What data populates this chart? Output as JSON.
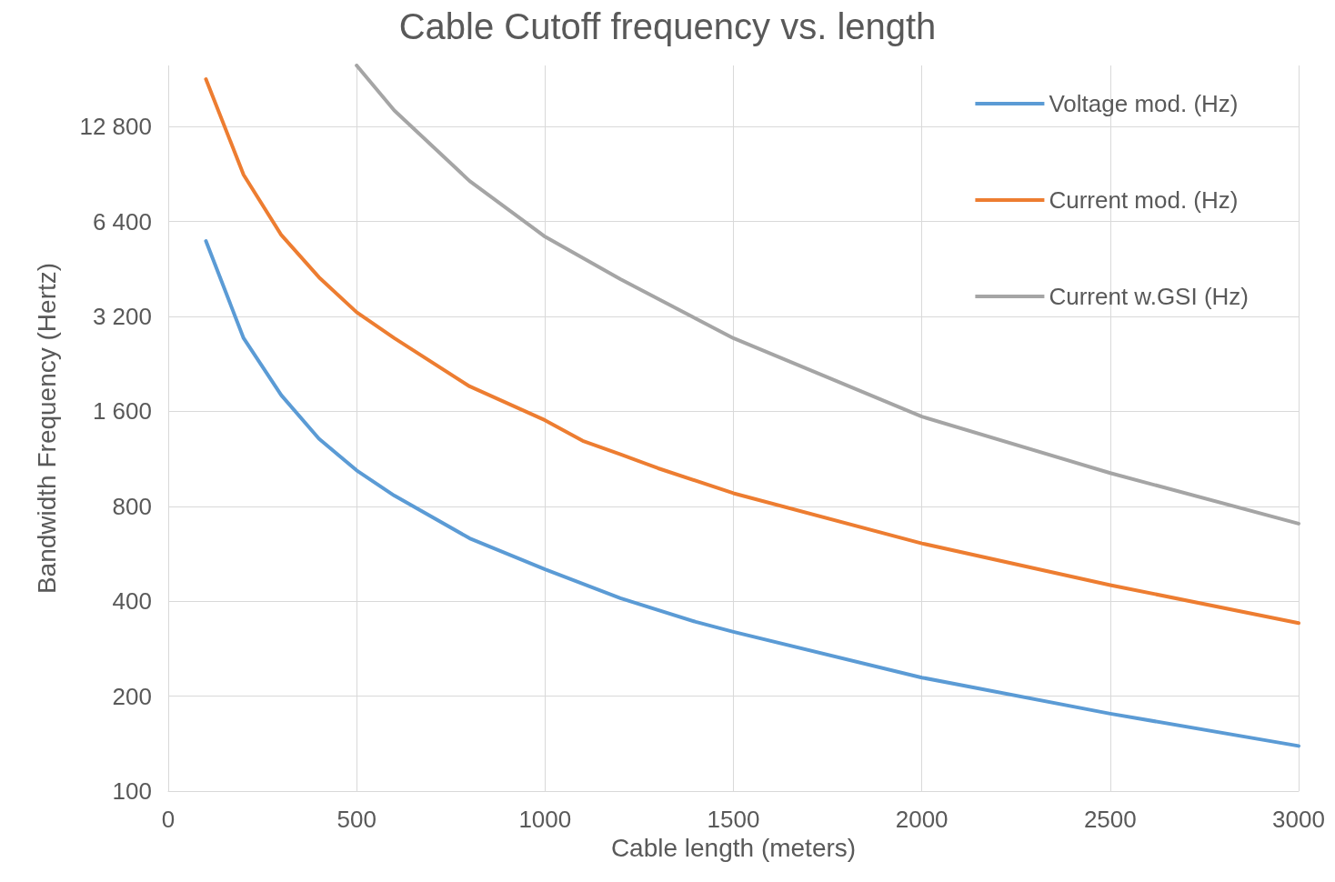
{
  "chart_data": {
    "type": "line",
    "title": "Cable Cutoff frequency vs. length",
    "xlabel": "Cable length (meters)",
    "ylabel": "Bandwidth Frequency (Hertz)",
    "log": "y",
    "grid": true,
    "legend": "top right",
    "marker": "none",
    "line_style": "solid",
    "xlim": [
      0,
      3000
    ],
    "xticks": [
      0,
      500,
      1000,
      1500,
      2000,
      2500,
      3000
    ],
    "ylim": [
      100,
      20000
    ],
    "yticks": [
      100,
      200,
      400,
      800,
      {
        "value": 1600,
        "label": "1 600"
      },
      {
        "value": 3200,
        "label": "3 200"
      },
      {
        "value": 6400,
        "label": "6 400"
      },
      {
        "value": 12800,
        "label": "12 800"
      }
    ],
    "series": [
      {
        "name": "Voltage mod. (Hz)",
        "color": "#5b9bd5",
        "x": [
          100,
          200,
          300,
          400,
          500,
          600,
          800,
          1000,
          1200,
          1400,
          1500,
          2000,
          2500,
          3000
        ],
        "values": [
          5550,
          2730,
          1800,
          1310,
          1040,
          865,
          633,
          505,
          409,
          344,
          320,
          229,
          176,
          139
        ]
      },
      {
        "name": "Current mod. (Hz)",
        "color": "#ed7d31",
        "x": [
          100,
          200,
          300,
          400,
          500,
          600,
          800,
          1000,
          1100,
          1200,
          1300,
          1500,
          2000,
          2500,
          3000
        ],
        "values": [
          18100,
          9000,
          5800,
          4260,
          3300,
          2730,
          1920,
          1500,
          1290,
          1170,
          1056,
          880,
          610,
          450,
          341
        ]
      },
      {
        "name": "Current w.GSI (Hz)",
        "color": "#a5a5a5",
        "x": [
          500,
          600,
          800,
          1000,
          1200,
          1500,
          2000,
          2500,
          3000
        ],
        "values": [
          20000,
          14400,
          8600,
          5730,
          4200,
          2730,
          1540,
          1020,
          705
        ]
      }
    ]
  }
}
